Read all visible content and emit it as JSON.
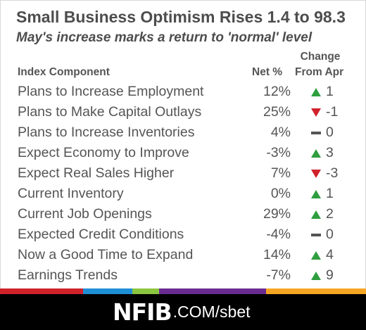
{
  "title": "Small Business Optimism Rises 1.4 to 98.3",
  "subtitle": "May's increase marks a return to 'normal' level",
  "headers": {
    "component": "Index Component",
    "net": "Net %",
    "change_line1": "Change",
    "change_line2": "From Apr"
  },
  "rows": [
    {
      "label": "Plans to Increase Employment",
      "net": "12%",
      "direction": "up",
      "change": "1"
    },
    {
      "label": "Plans to Make Capital Outlays",
      "net": "25%",
      "direction": "down",
      "change": "-1"
    },
    {
      "label": "Plans to Increase Inventories",
      "net": "4%",
      "direction": "flat",
      "change": "0"
    },
    {
      "label": "Expect Economy to Improve",
      "net": "-3%",
      "direction": "up",
      "change": "3"
    },
    {
      "label": "Expect Real Sales Higher",
      "net": "7%",
      "direction": "down",
      "change": "-3"
    },
    {
      "label": "Current Inventory",
      "net": "0%",
      "direction": "up",
      "change": "1"
    },
    {
      "label": "Current Job Openings",
      "net": "29%",
      "direction": "up",
      "change": "2"
    },
    {
      "label": "Expected Credit Conditions",
      "net": "-4%",
      "direction": "flat",
      "change": "0"
    },
    {
      "label": "Now a Good Time to Expand",
      "net": "14%",
      "direction": "up",
      "change": "4"
    },
    {
      "label": "Earnings Trends",
      "net": "-7%",
      "direction": "up",
      "change": "9"
    }
  ],
  "icons": {
    "up": "triangle-up-icon",
    "down": "triangle-down-icon",
    "flat": "dash-icon"
  },
  "colors": {
    "up": "#2e9e3e",
    "down": "#d0222a",
    "flat": "#555555",
    "footer_bg": "#000000",
    "stripe": [
      "#d0222a",
      "#1f8fd6",
      "#8cc63f",
      "#6a2c91",
      "#f5a623"
    ]
  },
  "footer": {
    "brand": "NFIB",
    "domain": ".COM/sbet"
  }
}
